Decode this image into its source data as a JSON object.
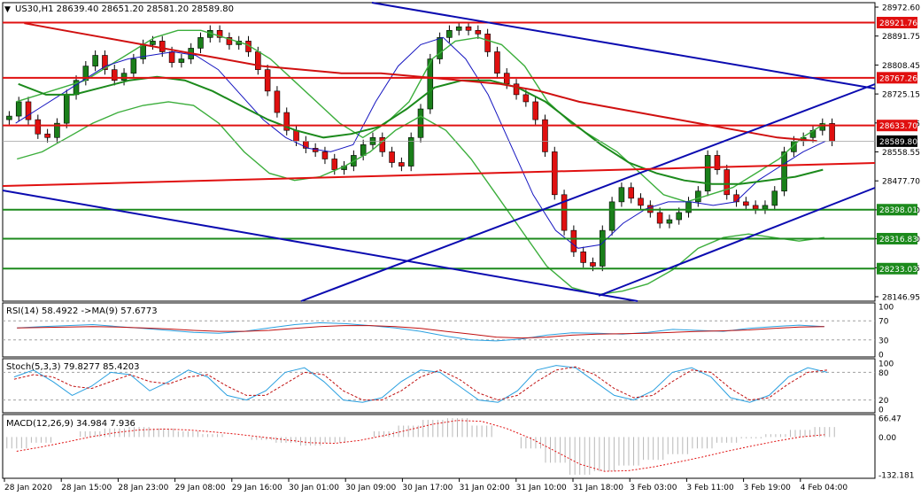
{
  "main": {
    "symbol_arrow": "▼",
    "header": "US30,H1  28639.40 28651.20 28581.20 28589.80",
    "price_ticks": [
      "28972.60",
      "28891.75",
      "28808.45",
      "28725.15",
      "28641.85",
      "28558.55",
      "28477.70",
      "28394.40",
      "28311.10",
      "28230.25",
      "28146.95"
    ],
    "levels": [
      {
        "label": "28921.76",
        "value": 28921.76,
        "color": "#e01010"
      },
      {
        "label": "28767.26",
        "value": 28767.26,
        "color": "#e01010"
      },
      {
        "label": "28633.70",
        "value": 28633.7,
        "color": "#e01010"
      },
      {
        "label": "28398.01",
        "value": 28398.01,
        "color": "#1c8a1c"
      },
      {
        "label": "28316.83",
        "value": 28316.83,
        "color": "#1c8a1c"
      },
      {
        "label": "28233.03",
        "value": 28233.03,
        "color": "#1c8a1c"
      }
    ],
    "current": {
      "label": "28589.80",
      "value": 28589.8
    }
  },
  "rsi": {
    "label": "RSI(14) 58.4922  ->MA(9) 57.6773",
    "ticks": [
      "100",
      "70",
      "30",
      "0"
    ],
    "rsi_value": 58.4922,
    "ma_value": 57.6773
  },
  "stoch": {
    "label": "Stoch(5,3,3) 79.8277 85.4203",
    "ticks": [
      "100",
      "80",
      "20",
      "0"
    ],
    "k_value": 79.8277,
    "d_value": 85.4203
  },
  "macd": {
    "label": "MACD(12,26,9) 34.984 7.936",
    "ticks": [
      "66.47",
      "0.00",
      "-132.181"
    ],
    "macd_value": 34.984,
    "signal_value": 7.936
  },
  "time_labels": [
    "28 Jan 2020",
    "28 Jan 15:00",
    "28 Jan 23:00",
    "29 Jan 08:00",
    "29 Jan 16:00",
    "30 Jan 01:00",
    "30 Jan 09:00",
    "30 Jan 17:00",
    "31 Jan 02:00",
    "31 Jan 10:00",
    "31 Jan 18:00",
    "3 Feb 03:00",
    "3 Feb 11:00",
    "3 Feb 19:00",
    "4 Feb 04:00"
  ],
  "chart_data": {
    "type": "candlestick",
    "timeframe": "H1",
    "y_range": [
      28146.95,
      28972.6
    ],
    "closes": [
      28660,
      28700,
      28650,
      28610,
      28600,
      28640,
      28720,
      28760,
      28800,
      28830,
      28790,
      28760,
      28780,
      28820,
      28860,
      28870,
      28840,
      28810,
      28820,
      28850,
      28880,
      28900,
      28880,
      28860,
      28870,
      28840,
      28790,
      28730,
      28670,
      28620,
      28590,
      28570,
      28560,
      28540,
      28510,
      28520,
      28550,
      28580,
      28600,
      28560,
      28530,
      28520,
      28600,
      28680,
      28820,
      28880,
      28900,
      28910,
      28900,
      28890,
      28840,
      28780,
      28750,
      28720,
      28700,
      28650,
      28560,
      28440,
      28340,
      28280,
      28250,
      28240,
      28340,
      28420,
      28460,
      28430,
      28410,
      28390,
      28360,
      28370,
      28390,
      28420,
      28450,
      28550,
      28510,
      28440,
      28420,
      28410,
      28400,
      28410,
      28450,
      28560,
      28590,
      28600,
      28620,
      28639.4,
      28589.8
    ],
    "upper_band": [
      28700,
      28720,
      28740,
      28760,
      28800,
      28840,
      28880,
      28900,
      28900,
      28880,
      28860,
      28820,
      28760,
      28700,
      28640,
      28600,
      28640,
      28700,
      28820,
      28870,
      28880,
      28860,
      28800,
      28700,
      28640,
      28600,
      28560,
      28500,
      28440,
      28420,
      28440,
      28460,
      28500,
      28540,
      28600,
      28640
    ],
    "lower_band": [
      28540,
      28560,
      28600,
      28640,
      28670,
      28690,
      28700,
      28690,
      28640,
      28560,
      28500,
      28480,
      28490,
      28520,
      28560,
      28620,
      28660,
      28620,
      28540,
      28440,
      28340,
      28240,
      28180,
      28160,
      28170,
      28190,
      28230,
      28290,
      28320,
      28330,
      28320,
      28310,
      28320
    ],
    "ma_fast": [
      28640,
      28680,
      28720,
      28760,
      28800,
      28820,
      28830,
      28840,
      28830,
      28790,
      28720,
      28650,
      28600,
      28570,
      28560,
      28580,
      28700,
      28800,
      28860,
      28880,
      28820,
      28720,
      28580,
      28440,
      28340,
      28290,
      28300,
      28360,
      28400,
      28420,
      28420,
      28410,
      28420,
      28480,
      28520,
      28560,
      28590
    ],
    "ma_slow": [
      28750,
      28720,
      28720,
      28740,
      28760,
      28770,
      28760,
      28730,
      28690,
      28650,
      28620,
      28600,
      28610,
      28630,
      28680,
      28740,
      28760,
      28760,
      28740,
      28700,
      28640,
      28580,
      28530,
      28500,
      28480,
      28470,
      28470,
      28480,
      28490,
      28510
    ],
    "ma_200": [
      28920,
      28900,
      28880,
      28860,
      28840,
      28820,
      28800,
      28790,
      28780,
      28780,
      28770,
      28760,
      28750,
      28730,
      28700,
      28680,
      28660,
      28640,
      28620,
      28600,
      28590
    ],
    "rsi": [
      55,
      58,
      60,
      62,
      58,
      54,
      50,
      46,
      44,
      48,
      55,
      62,
      66,
      64,
      60,
      55,
      48,
      38,
      30,
      28,
      32,
      40,
      45,
      44,
      42,
      46,
      52,
      50,
      48,
      54,
      58,
      61,
      58
    ],
    "rsi_ma": [
      55,
      56,
      57,
      58,
      57,
      55,
      53,
      50,
      48,
      48,
      50,
      54,
      58,
      60,
      60,
      58,
      54,
      48,
      42,
      36,
      34,
      36,
      40,
      42,
      43,
      44,
      46,
      48,
      49,
      51,
      54,
      57,
      58
    ],
    "stoch_k": [
      70,
      85,
      60,
      30,
      50,
      80,
      75,
      40,
      60,
      85,
      70,
      30,
      20,
      40,
      80,
      90,
      60,
      20,
      15,
      25,
      60,
      85,
      80,
      50,
      20,
      15,
      40,
      85,
      95,
      90,
      60,
      30,
      20,
      40,
      80,
      90,
      70,
      25,
      15,
      30,
      70,
      90,
      80
    ],
    "stoch_d": [
      65,
      75,
      70,
      50,
      45,
      60,
      75,
      60,
      55,
      70,
      75,
      50,
      30,
      30,
      55,
      80,
      75,
      40,
      20,
      20,
      40,
      70,
      85,
      65,
      35,
      20,
      30,
      60,
      85,
      92,
      75,
      45,
      25,
      30,
      60,
      85,
      80,
      45,
      20,
      25,
      55,
      80,
      85
    ],
    "macd": [
      -40,
      -20,
      0,
      20,
      30,
      35,
      30,
      20,
      10,
      0,
      -10,
      -20,
      -30,
      -20,
      0,
      20,
      40,
      60,
      66,
      40,
      0,
      -40,
      -90,
      -132,
      -120,
      -100,
      -80,
      -60,
      -40,
      -20,
      -5,
      10,
      25,
      35
    ],
    "macd_signal": [
      -50,
      -35,
      -18,
      0,
      15,
      25,
      28,
      25,
      18,
      10,
      0,
      -10,
      -20,
      -22,
      -12,
      5,
      25,
      45,
      58,
      55,
      30,
      -5,
      -50,
      -95,
      -120,
      -118,
      -105,
      -88,
      -70,
      -50,
      -32,
      -15,
      0,
      8
    ]
  }
}
